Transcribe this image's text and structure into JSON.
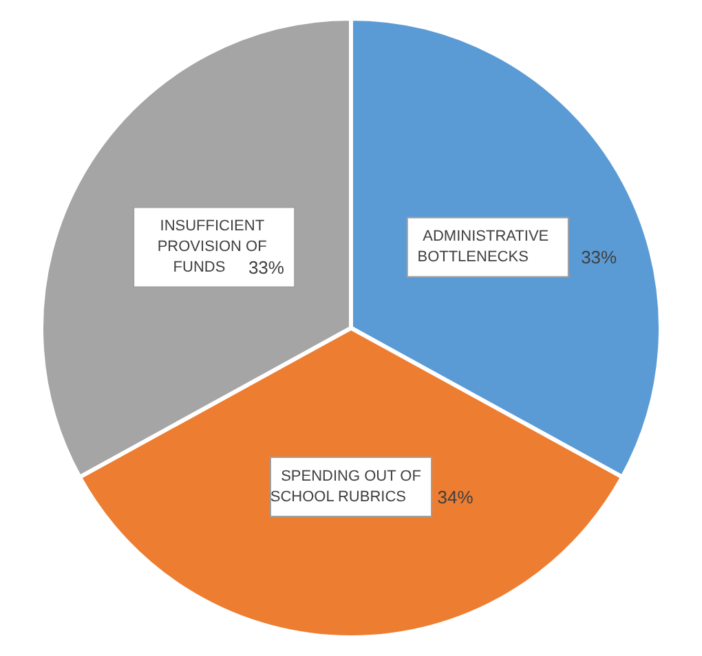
{
  "chart_data": {
    "type": "pie",
    "categories": [
      "ADMINISTRATIVE BOTTLENECKS",
      "SPENDING OUT OF SCHOOL RUBRICS",
      "INSUFFICIENT PROVISION OF FUNDS"
    ],
    "values": [
      33,
      34,
      33
    ],
    "value_labels": [
      "33%",
      "34%",
      "33%"
    ],
    "colors": [
      "#5b9bd5",
      "#ed7d31",
      "#a5a5a5"
    ],
    "legend": false
  }
}
